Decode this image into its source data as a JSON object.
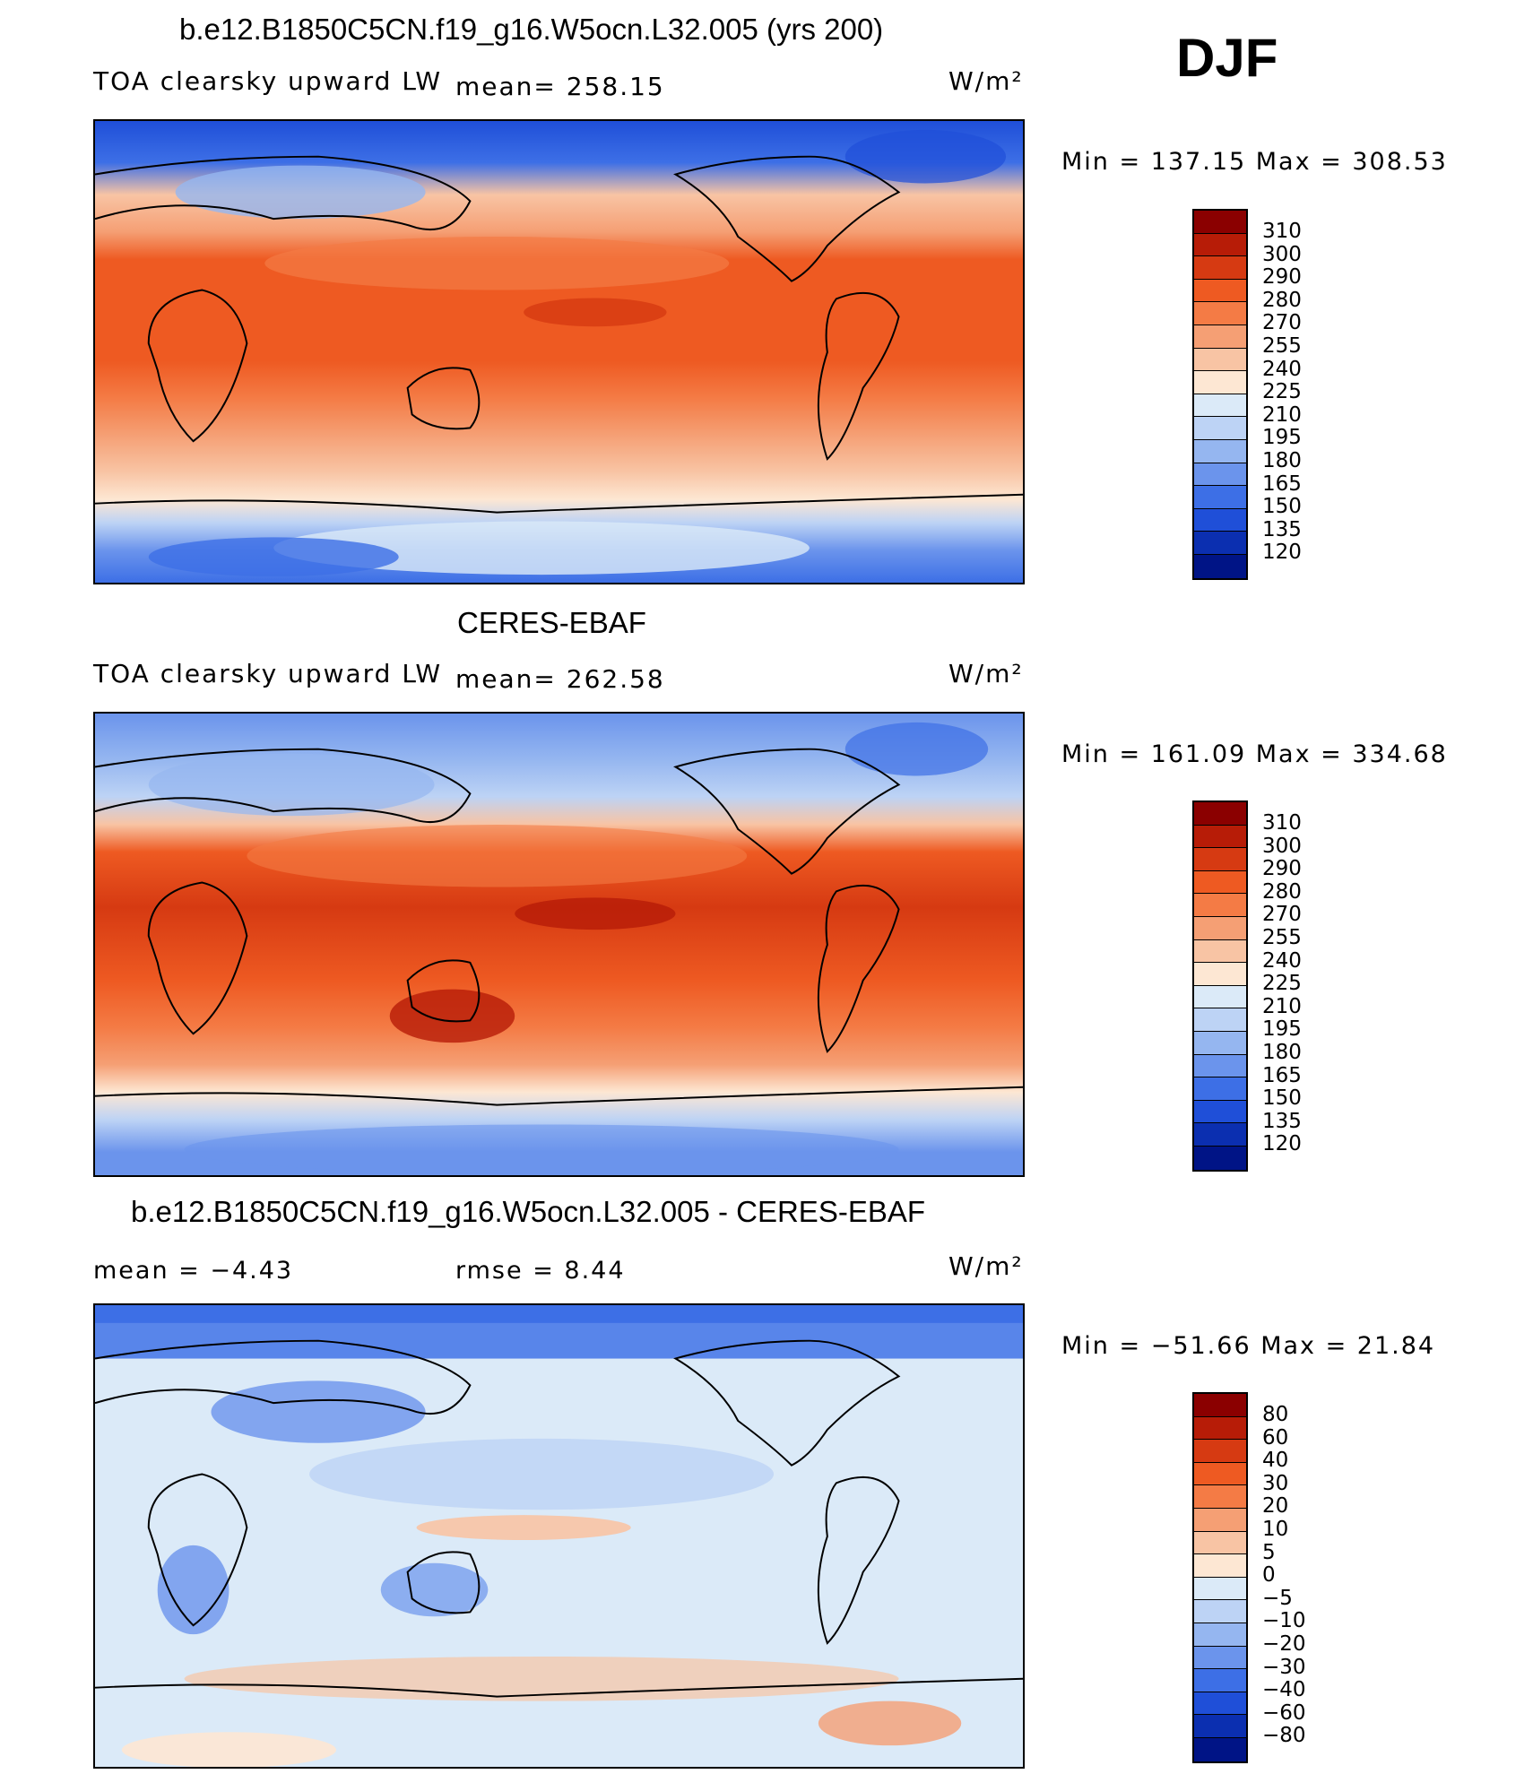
{
  "season": "DJF",
  "panels": [
    {
      "title": "b.e12.B1850C5CN.f19_g16.W5ocn.L32.005 (yrs 200)",
      "left_label": "TOA clearsky upward LW",
      "center_label": "mean= 258.15",
      "units": "W/m²",
      "range_label": "Min  =  137.15  Max  =  308.53",
      "colorbar_ticks": [
        "310",
        "300",
        "290",
        "280",
        "270",
        "255",
        "240",
        "225",
        "210",
        "195",
        "180",
        "165",
        "150",
        "135",
        "120"
      ],
      "colorbar_colors": [
        "#8b0000",
        "#b71c07",
        "#d63a12",
        "#ee5a22",
        "#f47b45",
        "#f59f74",
        "#f8c4a4",
        "#fde7d3",
        "#dbeaf8",
        "#bdd3f5",
        "#95b6f0",
        "#6b94ec",
        "#3d6fe6",
        "#1f4fd8",
        "#0b2fb0",
        "#001486"
      ]
    },
    {
      "title": "CERES-EBAF",
      "left_label": "TOA clearsky upward LW",
      "center_label": "mean= 262.58",
      "units": "W/m²",
      "range_label": "Min  =  161.09  Max  =  334.68",
      "colorbar_ticks": [
        "310",
        "300",
        "290",
        "280",
        "270",
        "255",
        "240",
        "225",
        "210",
        "195",
        "180",
        "165",
        "150",
        "135",
        "120"
      ],
      "colorbar_colors": [
        "#8b0000",
        "#b71c07",
        "#d63a12",
        "#ee5a22",
        "#f47b45",
        "#f59f74",
        "#f8c4a4",
        "#fde7d3",
        "#dbeaf8",
        "#bdd3f5",
        "#95b6f0",
        "#6b94ec",
        "#3d6fe6",
        "#1f4fd8",
        "#0b2fb0",
        "#001486"
      ]
    },
    {
      "title": "b.e12.B1850C5CN.f19_g16.W5ocn.L32.005 - CERES-EBAF",
      "left_label": "mean  =    −4.43",
      "center_label": "rmse  =     8.44",
      "units": "W/m²",
      "range_label": "Min  =  −51.66  Max  =    21.84",
      "colorbar_ticks": [
        "80",
        "60",
        "40",
        "30",
        "20",
        "10",
        "5",
        "0",
        "−5",
        "−10",
        "−20",
        "−30",
        "−40",
        "−60",
        "−80"
      ],
      "colorbar_colors": [
        "#8b0000",
        "#b71c07",
        "#d63a12",
        "#ee5a22",
        "#f47b45",
        "#f59f74",
        "#f8c4a4",
        "#fde7d3",
        "#dbeaf8",
        "#bdd3f5",
        "#95b6f0",
        "#6b94ec",
        "#3d6fe6",
        "#1f4fd8",
        "#0b2fb0",
        "#001486"
      ]
    }
  ]
}
